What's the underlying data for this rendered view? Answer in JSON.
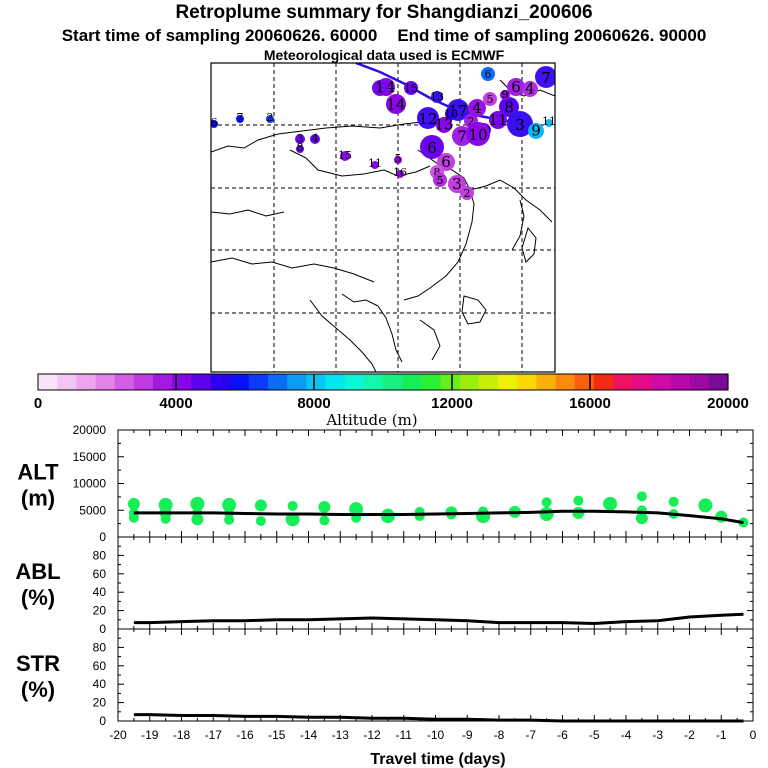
{
  "header": {
    "title": "Retroplume summary for Shangdianzi_200606",
    "start_label": "Start time of sampling 20060626. 60000",
    "end_label": "End time of sampling 20060626. 90000",
    "met_label": "Meteorological data used is ECMWF"
  },
  "colorbar": {
    "label": "Altitude (m)",
    "ticks": [
      "0",
      "4000",
      "8000",
      "12000",
      "16000",
      "20000"
    ],
    "range": [
      0,
      20000
    ],
    "colors": [
      "#fbe3fb",
      "#f4c6f4",
      "#eda5ee",
      "#e383ea",
      "#d45ee6",
      "#c03ae0",
      "#a21ae2",
      "#8606e8",
      "#5e02ec",
      "#2c00f0",
      "#0a10f6",
      "#0a3cf8",
      "#0a6cf8",
      "#0a9cf6",
      "#08c4f2",
      "#04e4ee",
      "#0ef4d6",
      "#14f6aa",
      "#18f080",
      "#16ee58",
      "#2cee32",
      "#66ee1e",
      "#9aee10",
      "#c8ee0a",
      "#eef00a",
      "#fad808",
      "#fcb00a",
      "#fb8a0c",
      "#f8600e",
      "#f62a10",
      "#f01262",
      "#e40c86",
      "#d00aa4",
      "#b808ac",
      "#9c08a6",
      "#7c0a98"
    ]
  },
  "map": {
    "labels": [
      "14",
      "15",
      "13",
      "14",
      "12",
      "17",
      "13",
      "2",
      "4",
      "5",
      "6",
      "4",
      "7",
      "6",
      "8",
      "3",
      "11",
      "10",
      "9",
      "11",
      "7",
      "10",
      "6",
      "6",
      "8",
      "5",
      "3",
      "2",
      "1",
      "5",
      "11",
      "16",
      "15",
      "4",
      "3",
      "8",
      "2",
      "7",
      "6",
      "9",
      "10"
    ]
  },
  "chart_data": [
    {
      "type": "scatter",
      "name": "ALT",
      "ylabel": "ALT\n(m)",
      "ylabel_lines": [
        "ALT",
        "(m)"
      ],
      "ylim": [
        0,
        20000
      ],
      "yticks": [
        "20000",
        "15000",
        "10000",
        "5000",
        "0"
      ],
      "mean_line": {
        "x": [
          -19.5,
          -19,
          -18,
          -17,
          -16,
          -15,
          -14,
          -13,
          -12,
          -11,
          -10,
          -9,
          -8,
          -7,
          -6,
          -5,
          -4,
          -3,
          -2,
          -1,
          -0.3
        ],
        "y": [
          4500,
          4500,
          4500,
          4500,
          4400,
          4300,
          4300,
          4200,
          4200,
          4200,
          4300,
          4400,
          4500,
          4600,
          4800,
          4800,
          4700,
          4500,
          4000,
          3400,
          2700
        ]
      },
      "spread_points": {
        "x": [
          -19.5,
          -19.5,
          -19.5,
          -18.5,
          -18.5,
          -18.5,
          -17.5,
          -17.5,
          -17.5,
          -16.5,
          -16.5,
          -16.5,
          -15.5,
          -15.5,
          -14.5,
          -14.5,
          -13.5,
          -13.5,
          -12.5,
          -12.5,
          -11.5,
          -11.5,
          -10.5,
          -10.5,
          -9.5,
          -9.5,
          -8.5,
          -8.5,
          -7.5,
          -6.5,
          -6.5,
          -5.5,
          -5.5,
          -4.5,
          -3.5,
          -3.5,
          -3.5,
          -2.5,
          -2.5,
          -1.5,
          -1,
          -0.3
        ],
        "y": [
          6200,
          4500,
          3600,
          6000,
          4500,
          3400,
          6200,
          4600,
          3300,
          6000,
          4500,
          3200,
          5900,
          3000,
          5800,
          3300,
          5600,
          3100,
          5200,
          3600,
          4200,
          3900,
          4700,
          3900,
          4600,
          4200,
          4800,
          3900,
          4700,
          6500,
          4300,
          6800,
          4500,
          6200,
          7600,
          5000,
          3500,
          6600,
          4300,
          5900,
          3800,
          2700
        ]
      }
    },
    {
      "type": "line",
      "name": "ABL",
      "ylabel": "ABL\n(%)",
      "ylabel_lines": [
        "ABL",
        "(%)"
      ],
      "ylim": [
        0,
        100
      ],
      "yticks": [
        "80",
        "60",
        "40",
        "20",
        "0"
      ],
      "x": [
        -19.5,
        -19,
        -18,
        -17,
        -16,
        -15,
        -14,
        -13,
        -12,
        -11,
        -10,
        -9,
        -8,
        -7,
        -6,
        -5,
        -4,
        -3,
        -2,
        -1,
        -0.3
      ],
      "y": [
        7,
        7,
        8,
        9,
        9,
        10,
        10,
        11,
        12,
        11,
        10,
        9,
        7,
        7,
        7,
        6,
        8,
        9,
        13,
        15,
        16
      ]
    },
    {
      "type": "line",
      "name": "STR",
      "ylabel": "STR\n(%)",
      "ylabel_lines": [
        "STR",
        "(%)"
      ],
      "ylim": [
        0,
        100
      ],
      "yticks": [
        "80",
        "60",
        "40",
        "20",
        "0"
      ],
      "xlabel": "Travel time (days)",
      "xticks": [
        "-20",
        "-19",
        "-18",
        "-17",
        "-16",
        "-15",
        "-14",
        "-13",
        "-12",
        "-11",
        "-10",
        "-9",
        "-8",
        "-7",
        "-6",
        "-5",
        "-4",
        "-3",
        "-2",
        "-1",
        "0"
      ],
      "x": [
        -19.5,
        -19,
        -18,
        -17,
        -16,
        -15,
        -14,
        -13,
        -12,
        -11,
        -10,
        -9,
        -8,
        -7,
        -6,
        -5,
        -4,
        -3,
        -2,
        -1,
        -0.3
      ],
      "y": [
        7,
        7,
        6,
        6,
        5,
        5,
        4,
        4,
        3,
        3,
        2,
        2,
        1,
        1,
        0,
        0,
        0,
        0,
        0,
        0,
        0
      ]
    }
  ]
}
